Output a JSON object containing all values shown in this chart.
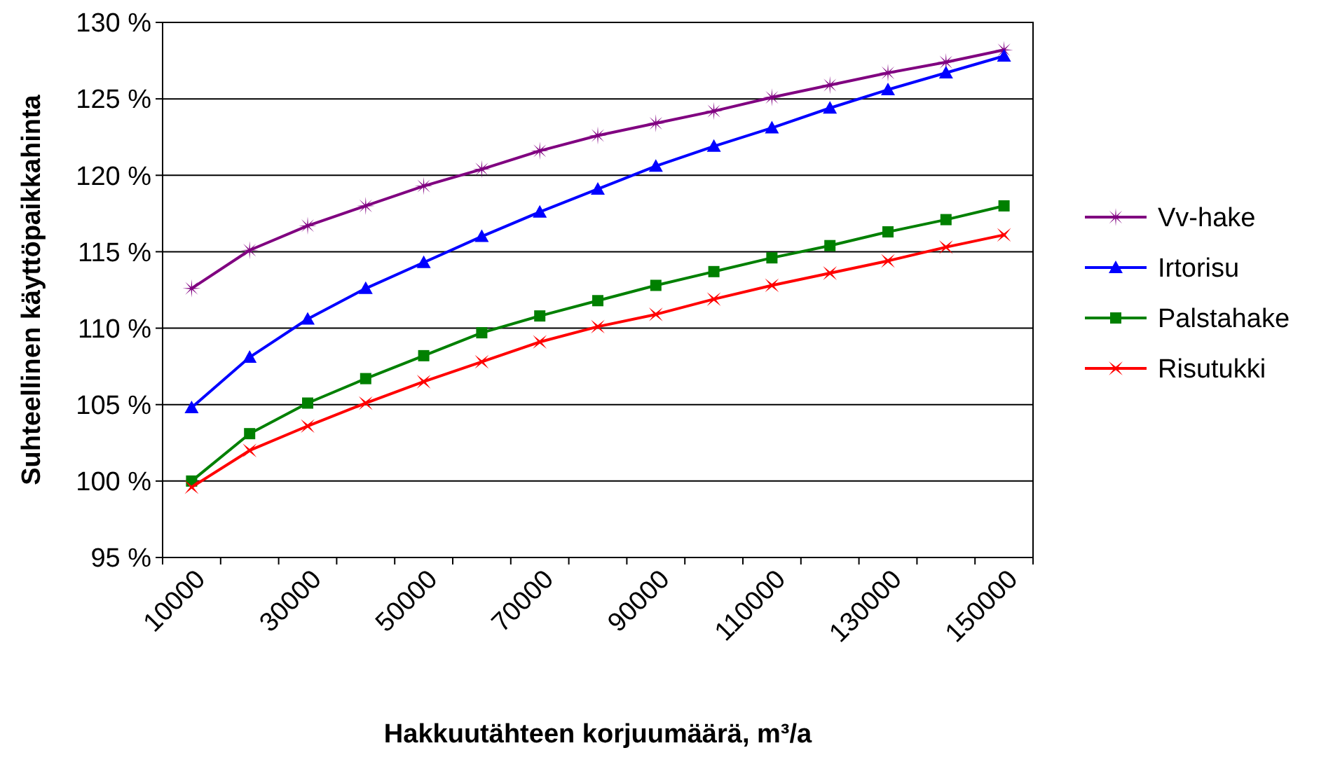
{
  "chart_data": {
    "type": "line",
    "xlabel": "Hakkuutähteen korjuumäärä, m³/a",
    "ylabel": "Suhteellinen käyttöpaikkahinta",
    "categories": [
      "10000",
      null,
      "30000",
      null,
      "50000",
      null,
      "70000",
      null,
      "90000",
      null,
      "110000",
      null,
      "130000",
      null,
      "150000"
    ],
    "ylim": [
      95,
      130
    ],
    "yticks": [
      {
        "value": 95,
        "label": "95 %"
      },
      {
        "value": 100,
        "label": "100 %"
      },
      {
        "value": 105,
        "label": "105 %"
      },
      {
        "value": 110,
        "label": "110 %"
      },
      {
        "value": 115,
        "label": "115 %"
      },
      {
        "value": 120,
        "label": "120 %"
      },
      {
        "value": 125,
        "label": "125 %"
      },
      {
        "value": 130,
        "label": "130 %"
      }
    ],
    "grid": "y",
    "legend": "right",
    "series": [
      {
        "name": "Vv-hake",
        "color": "#800080",
        "marker": "star",
        "values": [
          112.6,
          115.1,
          116.7,
          118.0,
          119.3,
          120.4,
          121.6,
          122.6,
          123.4,
          124.2,
          125.1,
          125.9,
          126.7,
          127.4,
          128.2
        ]
      },
      {
        "name": "Irtorisu",
        "color": "#0000ff",
        "marker": "triangle",
        "values": [
          104.8,
          108.1,
          110.6,
          112.6,
          114.3,
          116.0,
          117.6,
          119.1,
          120.6,
          121.9,
          123.1,
          124.4,
          125.6,
          126.7,
          127.8
        ]
      },
      {
        "name": "Palstahake",
        "color": "#008000",
        "marker": "square",
        "values": [
          100.0,
          103.1,
          105.1,
          106.7,
          108.2,
          109.7,
          110.8,
          111.8,
          112.8,
          113.7,
          114.6,
          115.4,
          116.3,
          117.1,
          118.0
        ]
      },
      {
        "name": "Risutukki",
        "color": "#ff0000",
        "marker": "cross",
        "values": [
          99.6,
          102.0,
          103.6,
          105.1,
          106.5,
          107.8,
          109.1,
          110.1,
          110.9,
          111.9,
          112.8,
          113.6,
          114.4,
          115.3,
          116.1
        ]
      }
    ]
  }
}
